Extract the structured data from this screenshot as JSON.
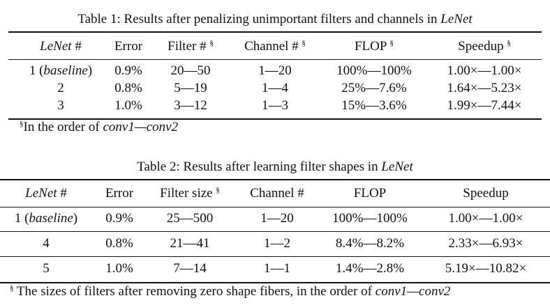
{
  "tables": [
    {
      "title": [
        {
          "t": "Table 1: Results after penalizing unimportant filters and channels in "
        },
        {
          "t": "LeNet",
          "i": true
        }
      ],
      "headers": [
        [
          {
            "t": "LeNet",
            "i": true
          },
          {
            "t": " #"
          }
        ],
        "Error",
        [
          {
            "t": "Filter # "
          },
          {
            "t": "§",
            "sup": true
          }
        ],
        [
          {
            "t": "Channel # "
          },
          {
            "t": "§",
            "sup": true
          }
        ],
        [
          {
            "t": "FLOP "
          },
          {
            "t": "§",
            "sup": true
          }
        ],
        [
          {
            "t": "Speedup "
          },
          {
            "t": "§",
            "sup": true
          }
        ]
      ],
      "rows": [
        [
          [
            {
              "t": "1 ("
            },
            {
              "t": "baseline",
              "i": true
            },
            {
              "t": ")"
            }
          ],
          "0.9%",
          "20—50",
          "1—20",
          "100%—100%",
          "1.00×—1.00×"
        ],
        [
          "2",
          "0.8%",
          "5—19",
          "1—4",
          "25%—7.6%",
          "1.64×—5.23×"
        ],
        [
          "3",
          "1.0%",
          "3—12",
          "1—3",
          "15%—3.6%",
          "1.99×—7.44×"
        ]
      ],
      "footnote": [
        {
          "t": "§",
          "sup": true
        },
        {
          "t": "In the order of "
        },
        {
          "t": "conv1—conv2",
          "i": true
        }
      ]
    },
    {
      "title": [
        {
          "t": "Table 2: Results after learning filter shapes in "
        },
        {
          "t": "LeNet",
          "i": true
        }
      ],
      "headers": [
        [
          {
            "t": "LeNet",
            "i": true
          },
          {
            "t": " #"
          }
        ],
        "Error",
        [
          {
            "t": "Filter size "
          },
          {
            "t": "§",
            "sup": true
          }
        ],
        "Channel #",
        "FLOP",
        "Speedup"
      ],
      "rows": [
        [
          [
            {
              "t": "1 ("
            },
            {
              "t": "baseline",
              "i": true
            },
            {
              "t": ")"
            }
          ],
          "0.9%",
          "25—500",
          "1—20",
          "100%—100%",
          "1.00×—1.00×"
        ],
        [
          "4",
          "0.8%",
          "21—41",
          "1—2",
          "8.4%—8.2%",
          "2.33×—6.93×"
        ],
        [
          "5",
          "1.0%",
          "7—14",
          "1—1",
          "1.4%—2.8%",
          "5.19×—10.82×"
        ]
      ],
      "footnote": [
        {
          "t": "§",
          "sup": true
        },
        {
          "t": " The sizes of filters after removing zero shape fibers, in the order of "
        },
        {
          "t": "conv1—conv2",
          "i": true
        }
      ]
    }
  ]
}
